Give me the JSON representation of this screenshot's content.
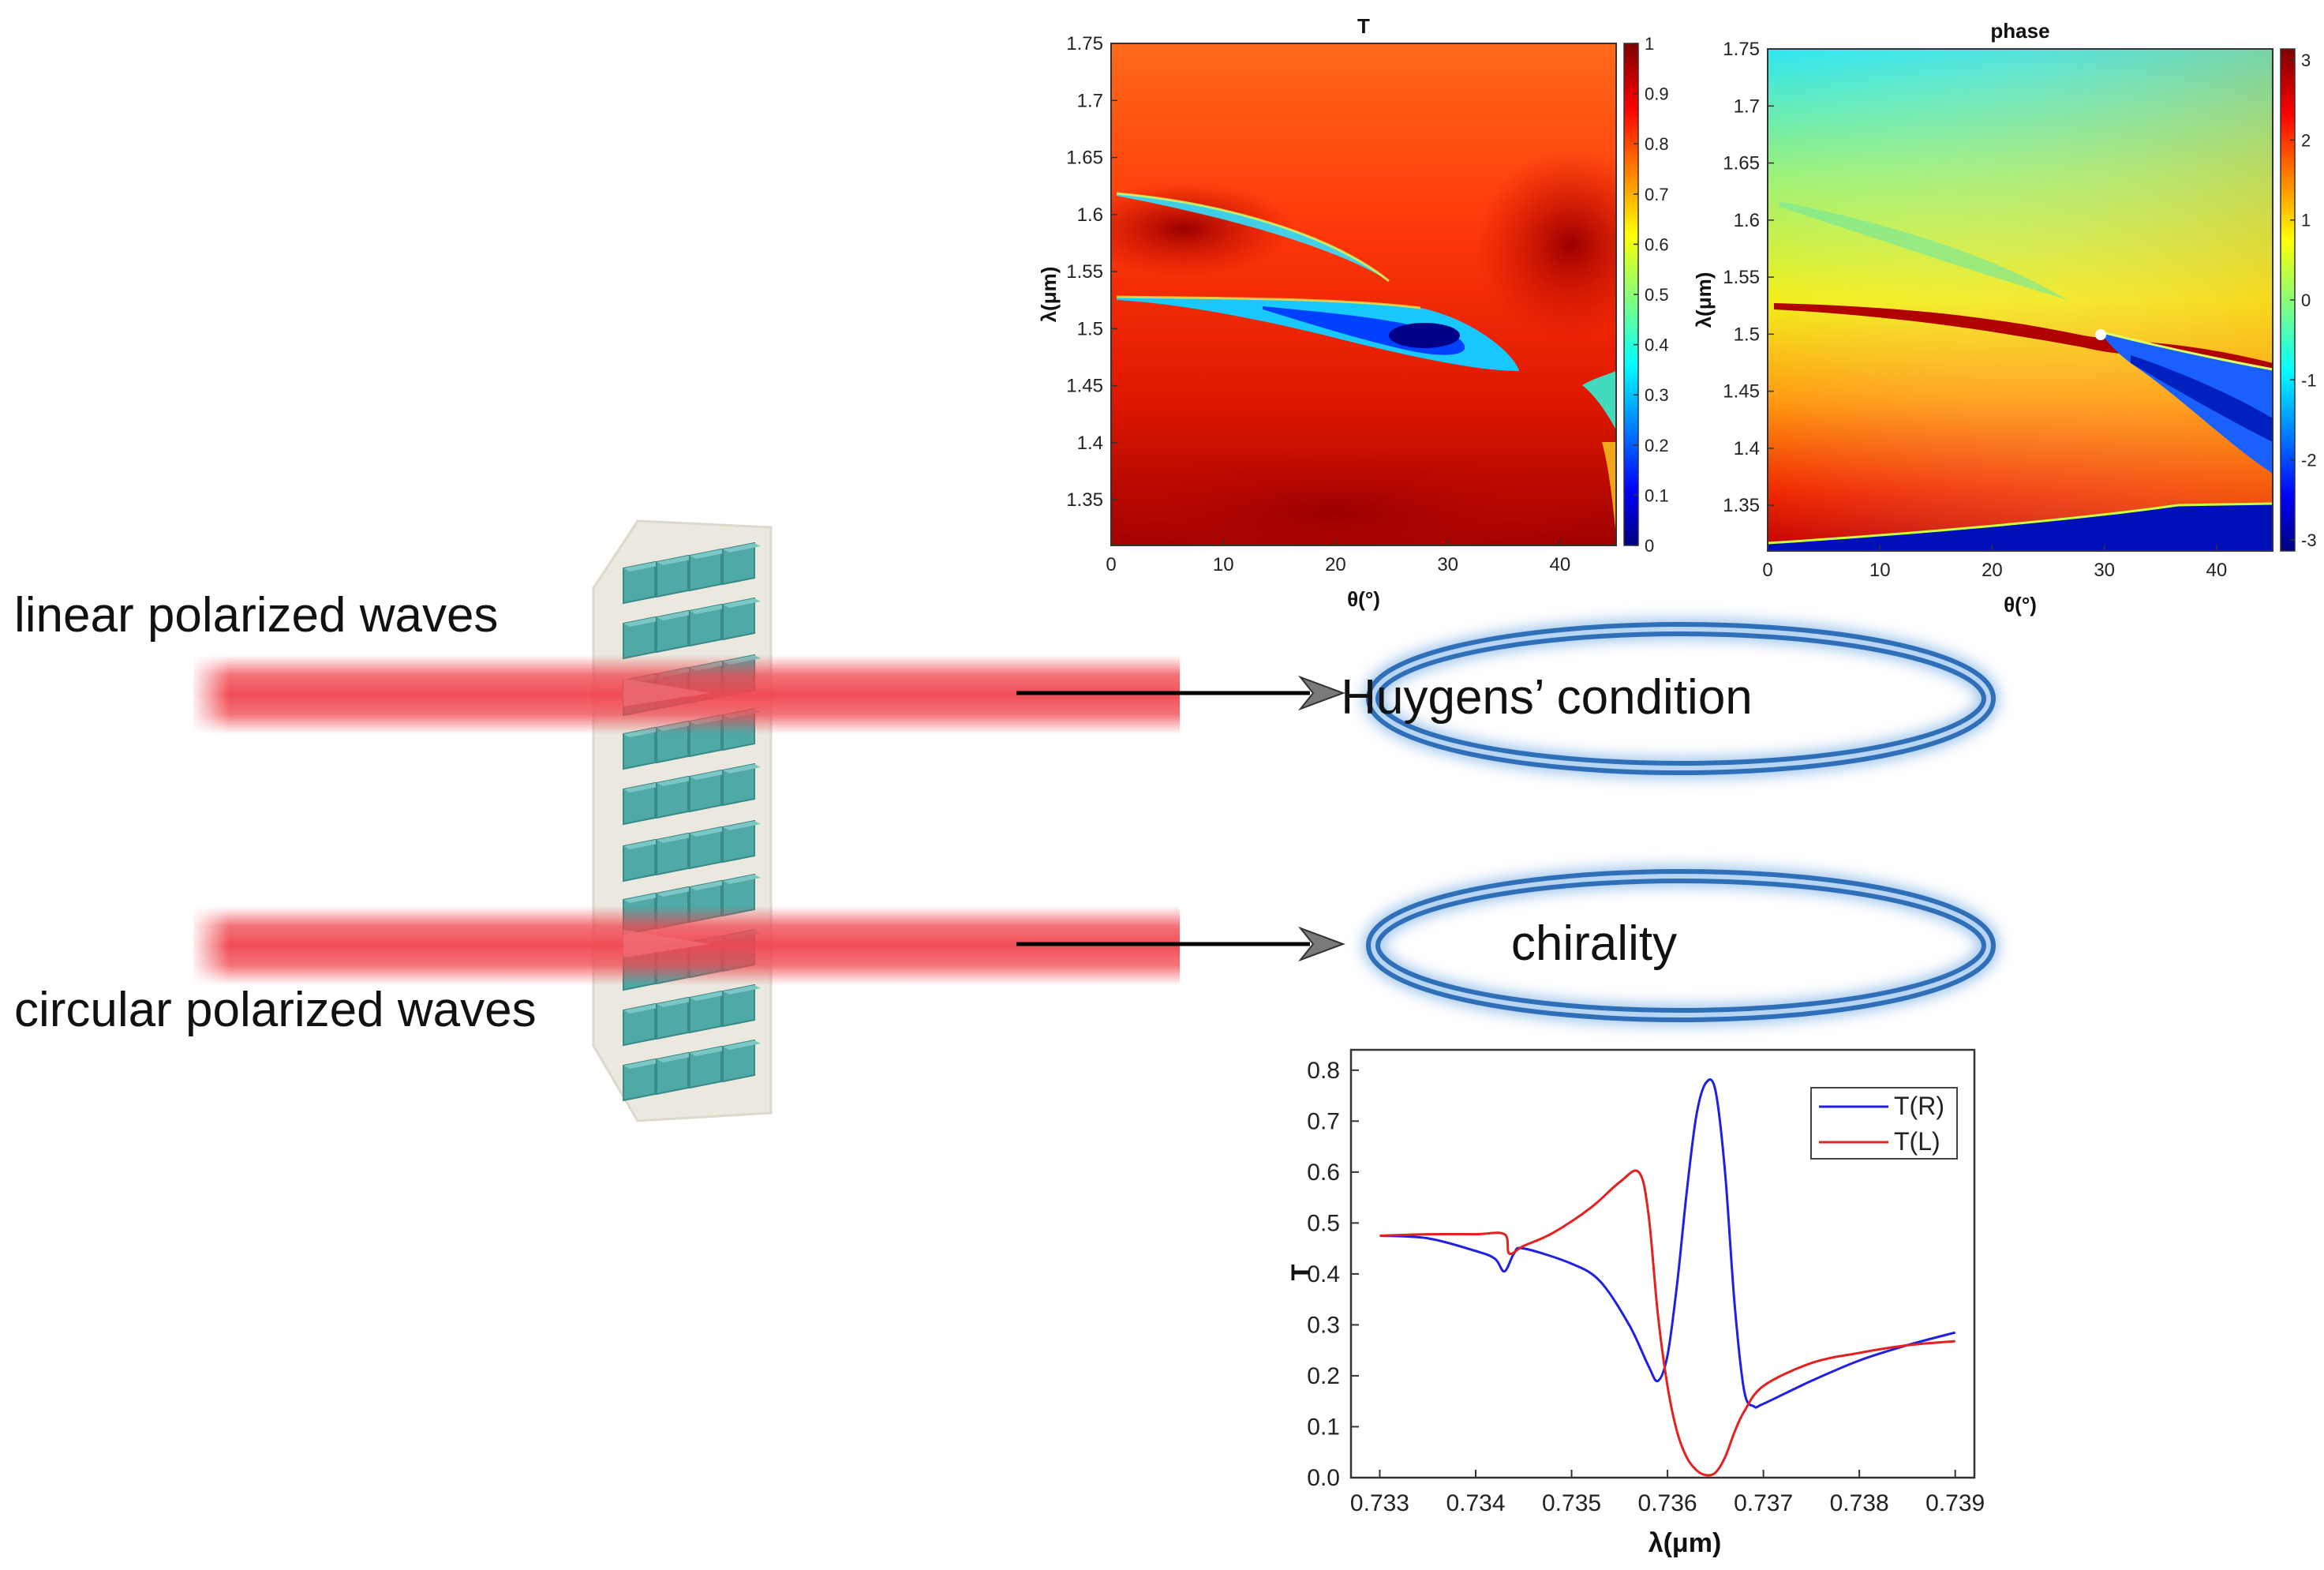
{
  "diagram": {
    "labels": {
      "linear": "linear polarized  waves",
      "circular": "circular polarized waves",
      "huygens": "Huygens’ condition",
      "chirality": "chirality"
    },
    "colors": {
      "beam": "#f0454d",
      "ellipse": "#2f6fb8",
      "metasurface": "#ebe8df",
      "pillar": "#4fa9a6"
    }
  },
  "chart_data": [
    {
      "type": "heatmap",
      "title": "T",
      "xlabel": "θ(°)",
      "ylabel": "λ(μm)",
      "xlim": [
        0,
        45
      ],
      "ylim": [
        1.31,
        1.75
      ],
      "x_ticks": [
        "0",
        "10",
        "20",
        "30",
        "40"
      ],
      "y_ticks": [
        "1.35",
        "1.4",
        "1.45",
        "1.5",
        "1.55",
        "1.6",
        "1.65",
        "1.7",
        "1.75"
      ],
      "colorbar": {
        "min": 0,
        "max": 1,
        "ticks": [
          "0",
          "0.1",
          "0.2",
          "0.3",
          "0.4",
          "0.5",
          "0.6",
          "0.7",
          "0.8",
          "0.9",
          "1"
        ],
        "colormap": "jet"
      }
    },
    {
      "type": "heatmap",
      "title": "phase",
      "xlabel": "θ(°)",
      "ylabel": "λ(μm)",
      "xlim": [
        0,
        45
      ],
      "ylim": [
        1.31,
        1.75
      ],
      "x_ticks": [
        "0",
        "10",
        "20",
        "30",
        "40"
      ],
      "y_ticks": [
        "1.35",
        "1.4",
        "1.45",
        "1.5",
        "1.55",
        "1.6",
        "1.65",
        "1.7",
        "1.75"
      ],
      "colorbar": {
        "min": -3.14,
        "max": 3.14,
        "ticks": [
          "-3",
          "-2",
          "-1",
          "0",
          "1",
          "2",
          "3"
        ],
        "colormap": "jet"
      }
    },
    {
      "type": "line",
      "xlabel": "λ(μm)",
      "ylabel": "T",
      "xlim": [
        0.7327,
        0.7392
      ],
      "ylim": [
        0,
        0.84
      ],
      "x_ticks": [
        "0.733",
        "0.734",
        "0.735",
        "0.736",
        "0.737",
        "0.738",
        "0.739"
      ],
      "y_ticks": [
        "0.0",
        "0.1",
        "0.2",
        "0.3",
        "0.4",
        "0.5",
        "0.6",
        "0.7",
        "0.8"
      ],
      "legend": "top-right",
      "series": [
        {
          "name": "T(R)",
          "color": "#1f1fe6",
          "x": [
            0.733,
            0.7335,
            0.734,
            0.7342,
            0.7343,
            0.7344,
            0.7345,
            0.735,
            0.7353,
            0.7356,
            0.7358,
            0.7359,
            0.736,
            0.7361,
            0.7362,
            0.7363,
            0.7364,
            0.7365,
            0.7366,
            0.7367,
            0.7368,
            0.7369,
            0.737,
            0.7375,
            0.738,
            0.7385,
            0.739
          ],
          "values": [
            0.475,
            0.47,
            0.445,
            0.43,
            0.405,
            0.44,
            0.45,
            0.42,
            0.385,
            0.3,
            0.22,
            0.19,
            0.24,
            0.38,
            0.56,
            0.71,
            0.775,
            0.76,
            0.6,
            0.34,
            0.17,
            0.14,
            0.145,
            0.19,
            0.23,
            0.26,
            0.285
          ]
        },
        {
          "name": "T(L)",
          "color": "#e61f1f",
          "x": [
            0.733,
            0.7335,
            0.734,
            0.7343,
            0.73435,
            0.7345,
            0.7348,
            0.7352,
            0.7355,
            0.7357,
            0.7358,
            0.7359,
            0.736,
            0.7361,
            0.7362,
            0.7363,
            0.7364,
            0.7365,
            0.7366,
            0.7367,
            0.7368,
            0.737,
            0.7375,
            0.738,
            0.7385,
            0.739
          ],
          "values": [
            0.475,
            0.478,
            0.478,
            0.478,
            0.44,
            0.455,
            0.48,
            0.53,
            0.58,
            0.6,
            0.52,
            0.32,
            0.18,
            0.09,
            0.04,
            0.015,
            0.005,
            0.01,
            0.04,
            0.09,
            0.13,
            0.18,
            0.225,
            0.245,
            0.26,
            0.268
          ]
        }
      ]
    }
  ]
}
